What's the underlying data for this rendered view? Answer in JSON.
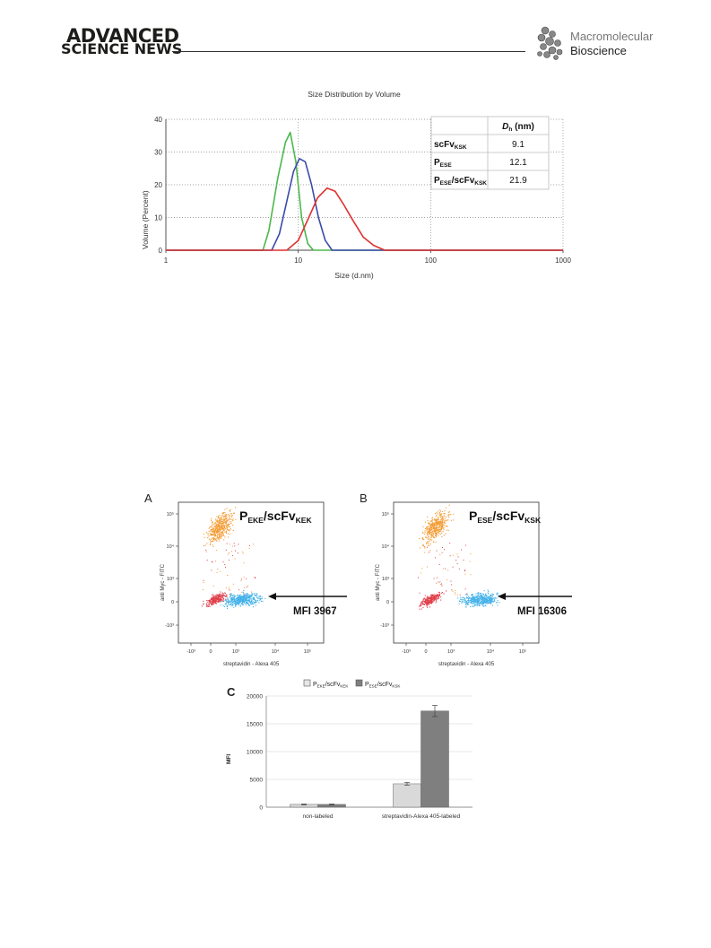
{
  "header": {
    "logo_line1": "ADVANCED",
    "logo_line2": "SCIENCE NEWS",
    "journal_line1": "Macromolecular",
    "journal_line2": "Bioscience"
  },
  "chart_data": [
    {
      "type": "line",
      "title": "Size Distribution by Volume",
      "xlabel": "Size (d.nm)",
      "ylabel": "Volume (Percent)",
      "xscale": "log",
      "xlim": [
        1,
        1000
      ],
      "ylim": [
        0,
        40
      ],
      "xticks": [
        "1",
        "10",
        "100",
        "1000"
      ],
      "yticks": [
        "0",
        "10",
        "20",
        "30",
        "40"
      ],
      "grid": true,
      "series": [
        {
          "color": "#4cb84c",
          "x": [
            1,
            5.4,
            6.0,
            7.0,
            8.0,
            8.7,
            9.6,
            10.6,
            11.8,
            13.0,
            1000
          ],
          "y": [
            0,
            0,
            6,
            22,
            33,
            36,
            27,
            10,
            2,
            0,
            0
          ]
        },
        {
          "color": "#3c4ba8",
          "x": [
            1,
            6.3,
            7.2,
            8.2,
            9.2,
            10.2,
            11.3,
            12.6,
            14.2,
            16.0,
            18.0,
            1000
          ],
          "y": [
            0,
            0,
            5,
            15,
            24,
            28,
            27,
            20,
            10,
            3,
            0,
            0
          ]
        },
        {
          "color": "#e03030",
          "x": [
            1,
            8.2,
            10.0,
            12.0,
            14.0,
            16.5,
            19.0,
            22.0,
            26.0,
            31.0,
            37.0,
            45.0,
            1000
          ],
          "y": [
            0,
            0,
            3,
            10,
            16,
            19,
            18,
            14,
            9,
            4,
            1.5,
            0,
            0
          ]
        }
      ],
      "table": {
        "header": [
          "",
          "D_h (nm)"
        ],
        "rows": [
          {
            "label": "scFv",
            "sub": "KSK",
            "value": "9.1"
          },
          {
            "label": "P",
            "sub": "ESE",
            "value": "12.1"
          },
          {
            "label": "P",
            "sub": "ESE",
            "label2": "/scFv",
            "sub2": "KSK",
            "value": "21.9"
          }
        ]
      }
    },
    {
      "type": "scatter",
      "panel": "A",
      "title": {
        "p1": "P",
        "s1": "EKE",
        "p2": "/scFv",
        "s2": "KEK"
      },
      "xlabel": "streptavidin - Alexa 405",
      "ylabel": "anti Myc - FITC",
      "xticks": [
        "-10³",
        "0",
        "10³",
        "10⁴",
        "10⁵"
      ],
      "yticks": [
        "10⁵",
        "10⁴",
        "10³",
        "0",
        "-10³"
      ],
      "annotation": "MFI  3967",
      "populations": [
        {
          "name": "orange",
          "color": "#f39a30"
        },
        {
          "name": "red",
          "color": "#e0404a"
        },
        {
          "name": "blue",
          "color": "#40b0e8"
        }
      ]
    },
    {
      "type": "scatter",
      "panel": "B",
      "title": {
        "p1": "P",
        "s1": "ESE",
        "p2": "/scFv",
        "s2": "KSK"
      },
      "xlabel": "streptavidin - Alexa 405",
      "ylabel": "anti Myc - FITC",
      "xticks": [
        "-10³",
        "0",
        "10³",
        "10⁴",
        "10⁵"
      ],
      "yticks": [
        "10⁵",
        "10⁴",
        "10³",
        "0",
        "-10³"
      ],
      "annotation": "MFI  16306",
      "populations": [
        {
          "name": "orange",
          "color": "#f39a30"
        },
        {
          "name": "red",
          "color": "#e0404a"
        },
        {
          "name": "blue",
          "color": "#40b0e8"
        }
      ]
    },
    {
      "type": "bar",
      "panel": "C",
      "ylabel": "MFI",
      "ylim": [
        0,
        20000
      ],
      "yticks": [
        "0",
        "5000",
        "10000",
        "15000",
        "20000"
      ],
      "categories": [
        "non-labeled",
        "streptavidin-Alexa 405-labeled"
      ],
      "series": [
        {
          "name": {
            "p1": "P",
            "s1": "EKE",
            "p2": "/scFv",
            "s2": "KEK"
          },
          "color": "#d9d9d9",
          "values": [
            500,
            4200
          ],
          "errors": [
            80,
            250
          ]
        },
        {
          "name": {
            "p1": "P",
            "s1": "ESE",
            "p2": "/scFv",
            "s2": "KSK"
          },
          "color": "#7f7f7f",
          "values": [
            500,
            17300
          ],
          "errors": [
            80,
            1000
          ]
        }
      ]
    }
  ]
}
